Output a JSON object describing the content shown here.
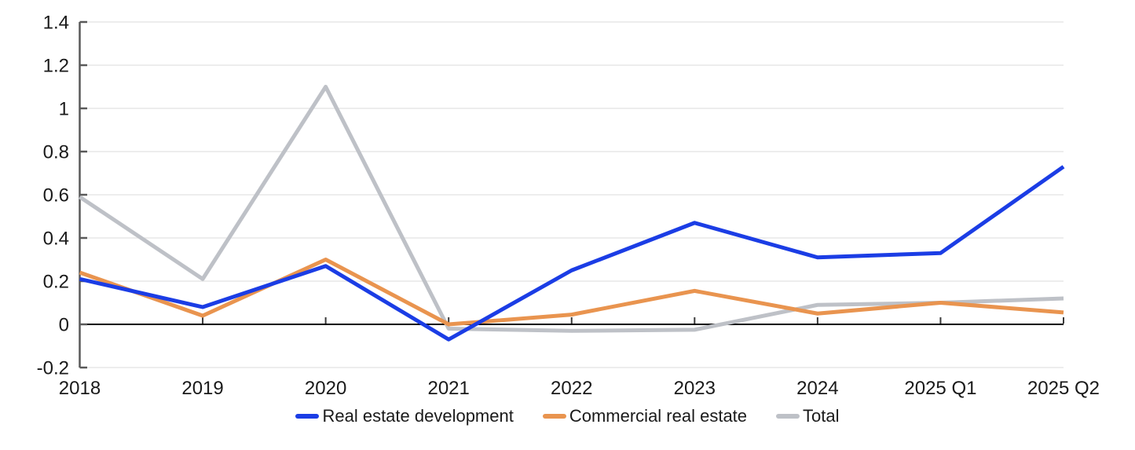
{
  "chart_data": {
    "type": "line",
    "title": "",
    "categories": [
      "2018",
      "2019",
      "2020",
      "2021",
      "2022",
      "2023",
      "2024",
      "2025 Q1",
      "2025 Q2"
    ],
    "series": [
      {
        "name": "Real estate development",
        "color": "#1b3de5",
        "values": [
          0.21,
          0.08,
          0.27,
          -0.07,
          0.25,
          0.47,
          0.31,
          0.33,
          0.73
        ]
      },
      {
        "name": "Commercial real estate",
        "color": "#e9944f",
        "values": [
          0.24,
          0.04,
          0.3,
          0.0,
          0.045,
          0.155,
          0.05,
          0.1,
          0.055
        ]
      },
      {
        "name": "Total",
        "color": "#bec1c7",
        "values": [
          0.59,
          0.21,
          1.1,
          -0.02,
          -0.03,
          -0.025,
          0.09,
          0.1,
          0.12
        ]
      }
    ],
    "ylim": [
      -0.2,
      1.4
    ],
    "ytick_step": 0.2,
    "ytick_labels": [
      "-0.2",
      "0",
      "0.2",
      "0.4",
      "0.6",
      "0.8",
      "1",
      "1.2",
      "1.4"
    ],
    "xlabel": "",
    "ylabel": "",
    "grid": "horizontal",
    "zero_line": true,
    "legend_position": "bottom"
  },
  "legend": {
    "items": [
      {
        "label": "Real estate development",
        "color": "#1b3de5"
      },
      {
        "label": "Commercial real estate",
        "color": "#e9944f"
      },
      {
        "label": "Total",
        "color": "#bec1c7"
      }
    ]
  },
  "colors": {
    "background": "#ffffff",
    "gridline": "#e7e7e7",
    "axis_spine": "#595959",
    "zero_line": "#000000",
    "tick": "#3a3a3a",
    "text": "#1a1a1a"
  }
}
